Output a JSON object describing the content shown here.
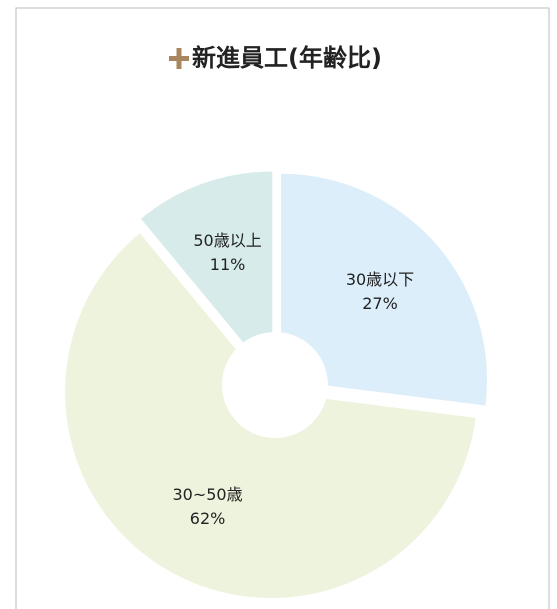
{
  "chart_data": {
    "type": "donut",
    "title": "新進員工(年齢比)",
    "categories": [
      "30歳以下",
      "30~50歳",
      "50歳以上"
    ],
    "values": [
      27,
      62,
      11
    ],
    "value_labels": [
      "27%",
      "62%",
      "11%"
    ],
    "colors": [
      "#dbeefa",
      "#edf3dc",
      "#d7ecea"
    ]
  }
}
